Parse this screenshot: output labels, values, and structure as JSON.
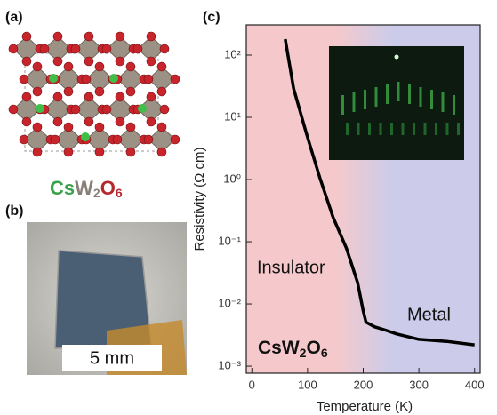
{
  "panel_a": {
    "label": "(a)",
    "formula": [
      "Cs",
      "W",
      "2",
      "O",
      "6"
    ]
  },
  "panel_b": {
    "label": "(b)",
    "scale_bar": "5 mm"
  },
  "chart_data": {
    "type": "line",
    "panel_label": "(c)",
    "x_label": "Temperature (K)",
    "y_label": "Resistivity (Ω cm)",
    "log_y": true,
    "xlim": [
      -10,
      410
    ],
    "ylim": [
      0.00077,
      306
    ],
    "xticks": [
      0,
      100,
      200,
      300,
      400
    ],
    "yticks": [
      {
        "value": 0.001,
        "label": "10⁻³"
      },
      {
        "value": 0.01,
        "label": "10⁻²"
      },
      {
        "value": 0.1,
        "label": "10⁻¹"
      },
      {
        "value": 1,
        "label": "10⁰"
      },
      {
        "value": 10,
        "label": "10¹"
      },
      {
        "value": 100,
        "label": "10²"
      }
    ],
    "x": [
      60,
      75,
      98,
      122,
      146,
      170,
      190,
      200,
      205,
      220,
      240,
      260,
      300,
      350,
      400
    ],
    "values": [
      180,
      29,
      5.5,
      1.07,
      0.245,
      0.078,
      0.022,
      0.0077,
      0.0051,
      0.0043,
      0.0038,
      0.0033,
      0.0027,
      0.0025,
      0.0022
    ],
    "color": "#000000",
    "annotations": [
      "Insulator",
      "Metal"
    ],
    "compound": [
      "CsW",
      "2",
      "O",
      "6"
    ]
  }
}
